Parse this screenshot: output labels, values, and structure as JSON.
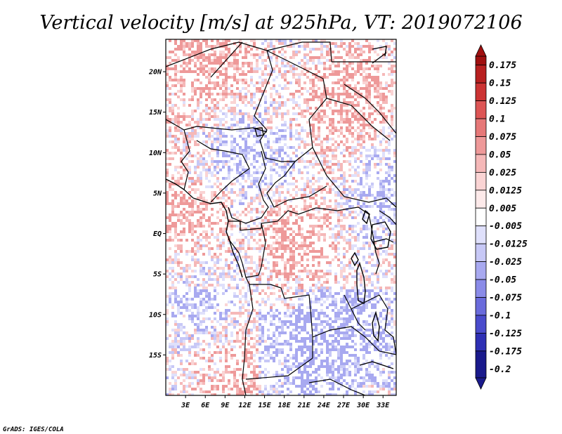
{
  "chart_data": {
    "type": "heatmap",
    "title": "Vertical velocity [m/s] at 925hPa, VT: 2019072106",
    "xlabel": "",
    "ylabel": "",
    "x_range": [
      0,
      35
    ],
    "y_range": [
      -20,
      24
    ],
    "x_ticks": [
      "3E",
      "6E",
      "9E",
      "12E",
      "15E",
      "18E",
      "21E",
      "24E",
      "27E",
      "30E",
      "33E"
    ],
    "x_tick_values": [
      3,
      6,
      9,
      12,
      15,
      18,
      21,
      24,
      27,
      30,
      33
    ],
    "y_ticks": [
      "20N",
      "15N",
      "10N",
      "5N",
      "EQ",
      "5S",
      "10S",
      "15S"
    ],
    "y_tick_values": [
      20,
      15,
      10,
      5,
      0,
      -5,
      -10,
      -15
    ],
    "colorbar": {
      "labels": [
        "0.175",
        "0.15",
        "0.125",
        "0.1",
        "0.075",
        "0.05",
        "0.025",
        "0.0125",
        "0.005",
        "-0.005",
        "-0.0125",
        "-0.025",
        "-0.05",
        "-0.075",
        "-0.1",
        "-0.125",
        "-0.175",
        "-0.2"
      ],
      "colors": [
        "#a01010",
        "#b82020",
        "#cc3333",
        "#dd5555",
        "#e67878",
        "#ee9999",
        "#f5b8b8",
        "#fad4d4",
        "#fdeaea",
        "#ffffff",
        "#dfe0fb",
        "#c7c8f6",
        "#a8a9f0",
        "#8a8be8",
        "#6a6bdc",
        "#4a4bcc",
        "#2e2fb4",
        "#1a1a8c"
      ]
    }
  },
  "footer": "GrADS: IGES/COLA"
}
